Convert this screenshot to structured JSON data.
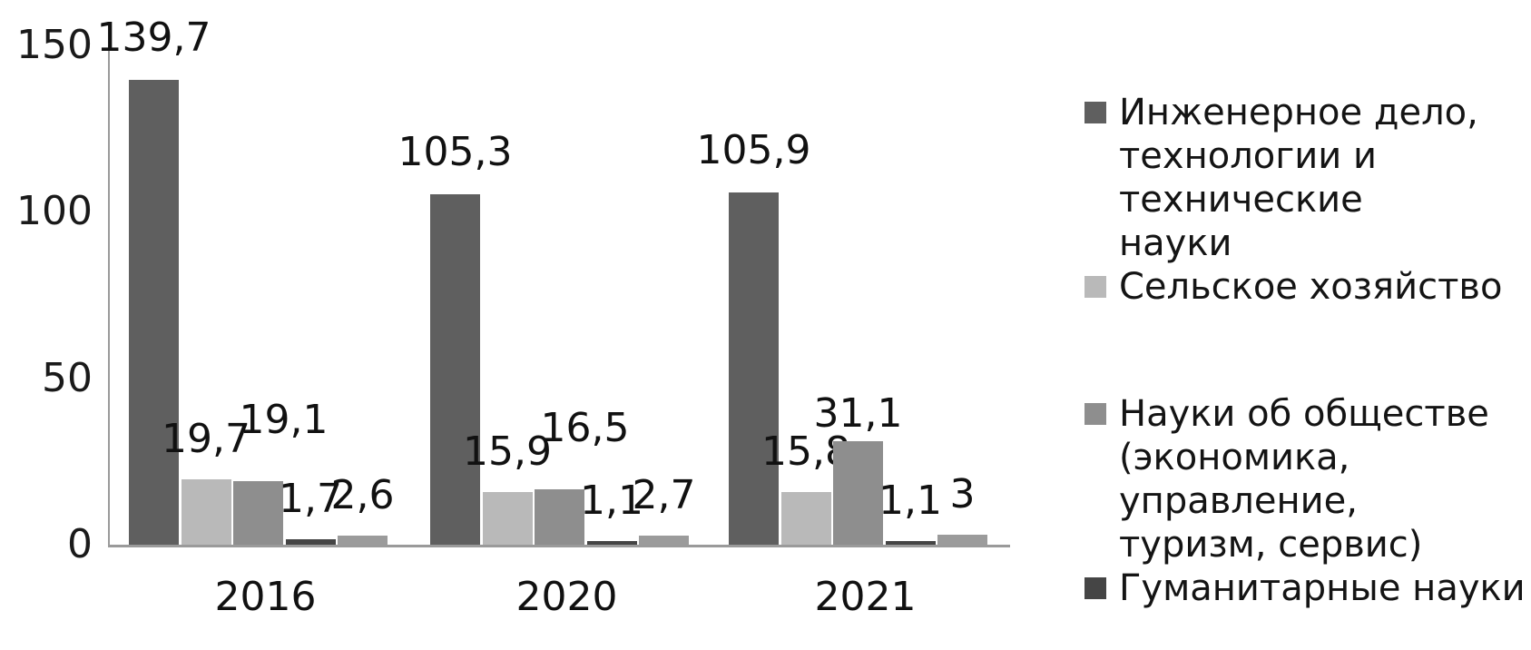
{
  "chart_data": {
    "type": "bar",
    "title": "",
    "categories": [
      "2016",
      "2020",
      "2021"
    ],
    "series": [
      {
        "name": "Инженерное дело, технологии и технические науки",
        "color": "#5f5f5f",
        "values": [
          139.7,
          105.3,
          105.9
        ],
        "value_labels": [
          "139,7",
          "105,3",
          "105,9"
        ]
      },
      {
        "name": "Сельское хозяйство",
        "color": "#b9b9b9",
        "values": [
          19.7,
          15.9,
          15.8
        ],
        "value_labels": [
          "19,7",
          "15,9",
          "15,8"
        ]
      },
      {
        "name": "Науки об обществе (экономика, управление, туризм, сервис)",
        "color": "#8e8e8e",
        "values": [
          19.1,
          16.5,
          31.1
        ],
        "value_labels": [
          "19,1",
          "16,5",
          "31,1"
        ]
      },
      {
        "name": "Гуманитарные науки",
        "color": "#454545",
        "values": [
          1.7,
          1.1,
          1.1
        ],
        "value_labels": [
          "1,7",
          "1,1",
          "1,1"
        ]
      },
      {
        "name": "",
        "color": "#9b9b9b",
        "values": [
          2.6,
          2.7,
          3
        ],
        "value_labels": [
          "2,6",
          "2,7",
          "3"
        ]
      }
    ],
    "y_axis": {
      "min": 0,
      "max": 150,
      "tick_values": [
        0,
        50,
        100,
        150
      ],
      "ticks": [
        "0",
        "50",
        "100",
        "150"
      ]
    },
    "grid": false,
    "legend_position": "right"
  },
  "legend": {
    "items": [
      {
        "series_index": 0,
        "color": "#5f5f5f",
        "gap_before": false,
        "lines": [
          "Инженерное дело,",
          "технологии и технические",
          "науки"
        ]
      },
      {
        "series_index": 1,
        "color": "#b9b9b9",
        "gap_before": false,
        "lines": [
          "Сельское хозяйство"
        ]
      },
      {
        "series_index": 2,
        "color": "#8e8e8e",
        "gap_before": true,
        "lines": [
          "Науки об обществе",
          "(экономика, управление,",
          "туризм, сервис)"
        ]
      },
      {
        "series_index": 3,
        "color": "#454545",
        "gap_before": false,
        "lines": [
          "Гуманитарные науки"
        ]
      }
    ]
  }
}
